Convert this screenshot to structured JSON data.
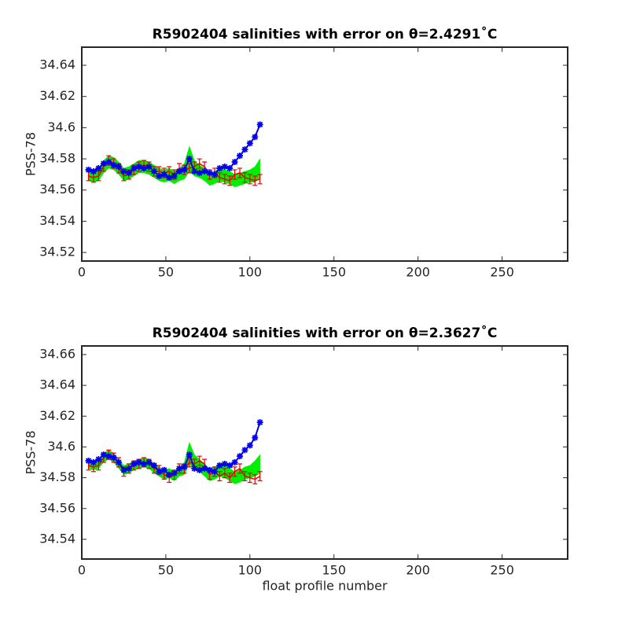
{
  "chart_data": [
    {
      "type": "line",
      "title": "R5902404 salinities with error on θ=2.4291˚C",
      "y_label": "PSS-78",
      "x": [
        4,
        7,
        10,
        13,
        16,
        19,
        22,
        25,
        28,
        31,
        34,
        37,
        40,
        43,
        46,
        49,
        52,
        55,
        58,
        61,
        64,
        67,
        70,
        73,
        76,
        79,
        82,
        85,
        88,
        91,
        94,
        97,
        100,
        103,
        106
      ],
      "xlim": [
        0,
        289
      ],
      "xticks": [
        0,
        50,
        100,
        150,
        200,
        250
      ],
      "ylim": [
        34.5145,
        34.6516
      ],
      "yticks": [
        34.52,
        34.54,
        34.56,
        34.58,
        34.6,
        34.62,
        34.64
      ],
      "series": [
        {
          "color": "#00ee00",
          "style": "band",
          "values": [
            34.57,
            34.569,
            34.57,
            34.575,
            34.578,
            34.577,
            34.574,
            34.57,
            34.571,
            34.573,
            34.575,
            34.575,
            34.574,
            34.572,
            34.57,
            34.569,
            34.57,
            34.568,
            34.57,
            34.572,
            34.58,
            34.574,
            34.572,
            34.57,
            34.567,
            34.568,
            34.57,
            34.569,
            34.568,
            34.566,
            34.567,
            34.568,
            34.569,
            34.57,
            34.574
          ],
          "errors": [
            0.004,
            0.004,
            0.004,
            0.004,
            0.004,
            0.004,
            0.004,
            0.004,
            0.004,
            0.004,
            0.004,
            0.004,
            0.004,
            0.004,
            0.004,
            0.004,
            0.004,
            0.004,
            0.004,
            0.005,
            0.008,
            0.005,
            0.004,
            0.004,
            0.004,
            0.004,
            0.004,
            0.004,
            0.004,
            0.004,
            0.004,
            0.004,
            0.004,
            0.005,
            0.006
          ]
        },
        {
          "color": "#ee0000",
          "style": "errorbar",
          "values": [
            34.569,
            34.568,
            34.569,
            34.575,
            34.579,
            34.577,
            34.574,
            34.569,
            34.57,
            34.573,
            34.575,
            34.576,
            34.575,
            34.572,
            34.572,
            34.571,
            34.572,
            34.57,
            34.574,
            34.573,
            34.574,
            34.575,
            34.577,
            34.575,
            34.57,
            34.571,
            34.568,
            34.567,
            34.566,
            34.57,
            34.571,
            34.568,
            34.567,
            34.566,
            34.567
          ],
          "errors": [
            0.003,
            0.003,
            0.003,
            0.003,
            0.003,
            0.003,
            0.003,
            0.003,
            0.003,
            0.003,
            0.003,
            0.003,
            0.003,
            0.003,
            0.003,
            0.003,
            0.003,
            0.003,
            0.003,
            0.003,
            0.003,
            0.003,
            0.003,
            0.003,
            0.003,
            0.003,
            0.003,
            0.003,
            0.003,
            0.003,
            0.003,
            0.003,
            0.003,
            0.003,
            0.003
          ]
        },
        {
          "color": "#0000ee",
          "style": "asterisk",
          "values": [
            34.573,
            34.572,
            34.574,
            34.577,
            34.578,
            34.576,
            34.575,
            34.572,
            34.571,
            34.574,
            34.575,
            34.574,
            34.575,
            34.572,
            34.569,
            34.57,
            34.568,
            34.569,
            34.572,
            34.573,
            34.58,
            34.572,
            34.571,
            34.572,
            34.571,
            34.57,
            34.574,
            34.575,
            34.574,
            34.578,
            34.582,
            34.586,
            34.59,
            34.594,
            34.602
          ]
        }
      ]
    },
    {
      "type": "line",
      "title": "R5902404 salinities with error on θ=2.3627˚C",
      "y_label": "PSS-78",
      "x_label": "float profile number",
      "x": [
        4,
        7,
        10,
        13,
        16,
        19,
        22,
        25,
        28,
        31,
        34,
        37,
        40,
        43,
        46,
        49,
        52,
        55,
        58,
        61,
        64,
        67,
        70,
        73,
        76,
        79,
        82,
        85,
        88,
        91,
        94,
        97,
        100,
        103,
        106
      ],
      "xlim": [
        0,
        289
      ],
      "xticks": [
        0,
        50,
        100,
        150,
        200,
        250
      ],
      "ylim": [
        34.5272,
        34.6656
      ],
      "yticks": [
        34.54,
        34.56,
        34.58,
        34.6,
        34.62,
        34.64,
        34.66
      ],
      "series": [
        {
          "color": "#00ee00",
          "style": "band",
          "values": [
            34.589,
            34.588,
            34.589,
            34.593,
            34.595,
            34.593,
            34.589,
            34.585,
            34.586,
            34.588,
            34.589,
            34.59,
            34.589,
            34.586,
            34.584,
            34.582,
            34.583,
            34.581,
            34.584,
            34.586,
            34.596,
            34.59,
            34.588,
            34.585,
            34.582,
            34.583,
            34.585,
            34.584,
            34.582,
            34.58,
            34.581,
            34.583,
            34.584,
            34.586,
            34.589
          ],
          "errors": [
            0.003,
            0.003,
            0.003,
            0.003,
            0.003,
            0.003,
            0.003,
            0.003,
            0.003,
            0.003,
            0.003,
            0.003,
            0.003,
            0.003,
            0.003,
            0.003,
            0.003,
            0.003,
            0.003,
            0.004,
            0.007,
            0.005,
            0.004,
            0.004,
            0.004,
            0.004,
            0.004,
            0.004,
            0.004,
            0.004,
            0.004,
            0.004,
            0.004,
            0.005,
            0.006
          ]
        },
        {
          "color": "#ee0000",
          "style": "errorbar",
          "values": [
            34.588,
            34.587,
            34.588,
            34.593,
            34.595,
            34.593,
            34.59,
            34.584,
            34.586,
            34.588,
            34.589,
            34.59,
            34.589,
            34.586,
            34.585,
            34.582,
            34.58,
            34.582,
            34.586,
            34.586,
            34.59,
            34.589,
            34.591,
            34.589,
            34.582,
            34.584,
            34.581,
            34.583,
            34.58,
            34.584,
            34.586,
            34.581,
            34.58,
            34.579,
            34.581
          ],
          "errors": [
            0.003,
            0.003,
            0.003,
            0.003,
            0.003,
            0.003,
            0.003,
            0.003,
            0.003,
            0.003,
            0.003,
            0.003,
            0.003,
            0.003,
            0.003,
            0.003,
            0.003,
            0.003,
            0.003,
            0.003,
            0.003,
            0.003,
            0.003,
            0.003,
            0.003,
            0.003,
            0.003,
            0.003,
            0.003,
            0.003,
            0.003,
            0.003,
            0.003,
            0.003,
            0.003
          ]
        },
        {
          "color": "#0000ee",
          "style": "asterisk",
          "values": [
            34.591,
            34.59,
            34.592,
            34.595,
            34.594,
            34.593,
            34.59,
            34.585,
            34.586,
            34.589,
            34.59,
            34.589,
            34.59,
            34.588,
            34.584,
            34.585,
            34.582,
            34.583,
            34.586,
            34.587,
            34.595,
            34.586,
            34.585,
            34.586,
            34.585,
            34.584,
            34.588,
            34.589,
            34.588,
            34.59,
            34.594,
            34.598,
            34.601,
            34.606,
            34.616
          ]
        }
      ]
    }
  ]
}
